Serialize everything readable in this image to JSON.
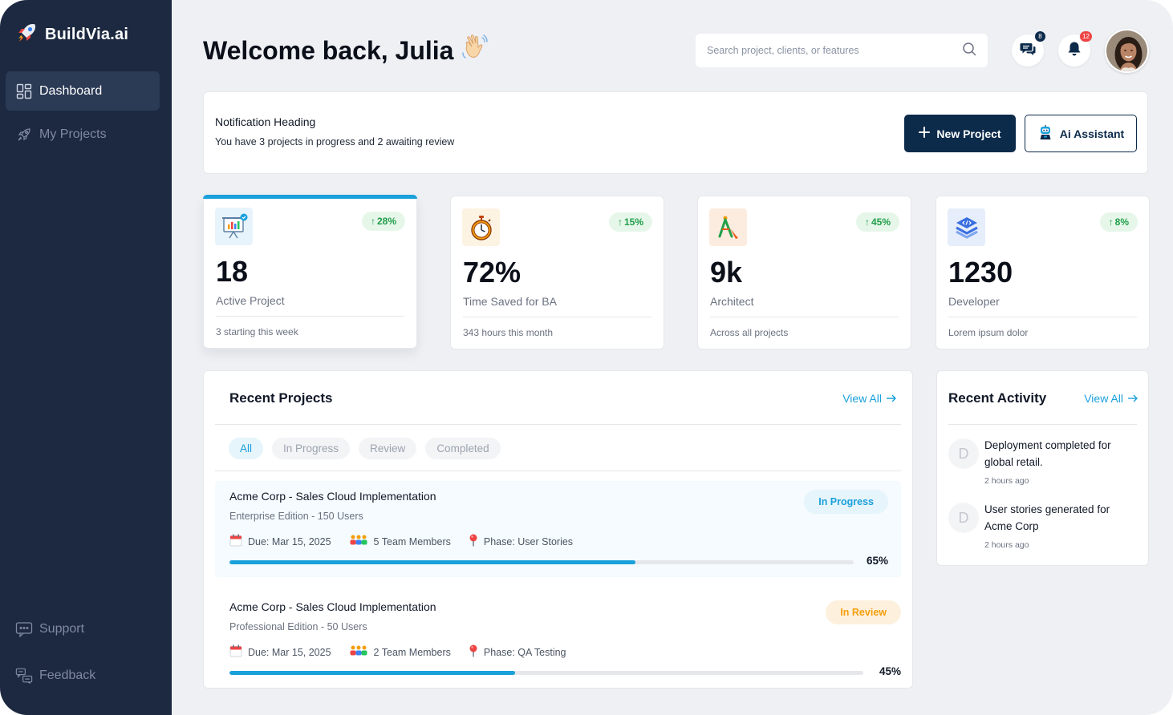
{
  "app": {
    "name": "BuildVia.ai"
  },
  "sidebar": {
    "items": [
      {
        "label": "Dashboard",
        "icon": "grid-icon",
        "active": true
      },
      {
        "label": "My Projects",
        "icon": "rocket-icon",
        "active": false
      }
    ],
    "footer_items": [
      {
        "label": "Support",
        "icon": "chat-icon"
      },
      {
        "label": "Feedback",
        "icon": "feedback-icon"
      }
    ]
  },
  "header": {
    "greeting": "Welcome back, Julia",
    "search_placeholder": "Search project, clients, or features",
    "messages_count": "8",
    "notifications_count": "12"
  },
  "notification": {
    "heading": "Notification Heading",
    "text": "You have 3 projects in progress and 2 awaiting review",
    "new_project_label": "New Project",
    "ai_assistant_label": "Ai Assistant"
  },
  "stats": [
    {
      "value": "18",
      "label": "Active Project",
      "change": "28%",
      "sub": "3 starting this week"
    },
    {
      "value": "72%",
      "label": "Time Saved for BA",
      "change": "15%",
      "sub": "343 hours this month"
    },
    {
      "value": "9k",
      "label": "Architect",
      "change": "45%",
      "sub": "Across all projects"
    },
    {
      "value": "1230",
      "label": "Developer",
      "change": "8%",
      "sub": "Lorem ipsum dolor"
    }
  ],
  "recent_projects": {
    "title": "Recent Projects",
    "view_all": "View All",
    "filters": [
      "All",
      "In Progress",
      "Review",
      "Completed"
    ],
    "active_filter": "All",
    "items": [
      {
        "title": "Acme Corp - Sales Cloud Implementation",
        "subtitle": "Enterprise Edition - 150 Users",
        "due": "Due: Mar 15, 2025",
        "team": "5 Team Members",
        "phase": "Phase: User Stories",
        "status": "In Progress",
        "progress": 65,
        "progress_label": "65%"
      },
      {
        "title": "Acme Corp - Sales Cloud Implementation",
        "subtitle": "Professional Edition - 50 Users",
        "due": "Due: Mar 15, 2025",
        "team": "2 Team Members",
        "phase": "Phase: QA Testing",
        "status": "In Review",
        "progress": 45,
        "progress_label": "45%"
      }
    ]
  },
  "recent_activity": {
    "title": "Recent Activity",
    "view_all": "View All",
    "items": [
      {
        "initial": "D",
        "text": "Deployment completed for global retail.",
        "time": "2 hours ago"
      },
      {
        "initial": "D",
        "text": "User stories generated for Acme Corp",
        "time": "2 hours ago"
      }
    ]
  },
  "colors": {
    "sidebar": "#1c2940",
    "primary": "#0c2a4a",
    "accent": "#1aa0db",
    "positive": "#1f9d48",
    "warning": "#f59e0b",
    "badge_blue": "#0c2a4a",
    "badge_red": "#ef4444"
  }
}
